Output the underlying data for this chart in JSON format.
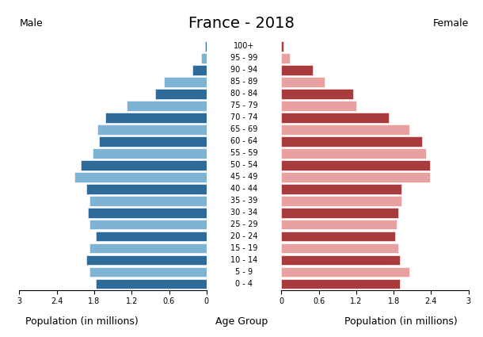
{
  "title": "France - 2018",
  "male_label": "Male",
  "female_label": "Female",
  "xlabel": "Population (in millions)",
  "center_label": "Age Group",
  "age_groups": [
    "0 - 4",
    "5 - 9",
    "10 - 14",
    "15 - 19",
    "20 - 24",
    "25 - 29",
    "30 - 34",
    "35 - 39",
    "40 - 44",
    "45 - 49",
    "50 - 54",
    "55 - 59",
    "60 - 64",
    "65 - 69",
    "70 - 74",
    "75 - 79",
    "80 - 84",
    "85 - 89",
    "90 - 94",
    "95 - 99",
    "100+"
  ],
  "male_values": [
    1.78,
    1.88,
    1.92,
    1.88,
    1.78,
    1.88,
    1.9,
    1.88,
    1.92,
    2.12,
    2.02,
    1.82,
    1.72,
    1.75,
    1.62,
    1.28,
    0.82,
    0.68,
    0.22,
    0.08,
    0.02
  ],
  "female_values": [
    1.9,
    2.05,
    1.9,
    1.88,
    1.82,
    1.85,
    1.88,
    1.92,
    1.92,
    2.38,
    2.38,
    2.32,
    2.25,
    2.05,
    1.72,
    1.2,
    1.15,
    0.7,
    0.5,
    0.14,
    0.03
  ],
  "male_colors": [
    "#2e6b99",
    "#7fb3d3",
    "#2e6b99",
    "#7fb3d3",
    "#2e6b99",
    "#7fb3d3",
    "#2e6b99",
    "#7fb3d3",
    "#2e6b99",
    "#7fb3d3",
    "#2e6b99",
    "#7fb3d3",
    "#2e6b99",
    "#7fb3d3",
    "#2e6b99",
    "#7fb3d3",
    "#2e6b99",
    "#7fb3d3",
    "#2e6b99",
    "#7fb3d3",
    "#2e6b99"
  ],
  "female_colors": [
    "#a83c3c",
    "#e8a0a0",
    "#a83c3c",
    "#e8a0a0",
    "#a83c3c",
    "#e8a0a0",
    "#a83c3c",
    "#e8a0a0",
    "#a83c3c",
    "#e8a0a0",
    "#a83c3c",
    "#e8a0a0",
    "#a83c3c",
    "#e8a0a0",
    "#a83c3c",
    "#e8a0a0",
    "#a83c3c",
    "#e8a0a0",
    "#a83c3c",
    "#e8a0a0",
    "#a83c3c"
  ],
  "xlim": 3.0,
  "xticks": [
    0,
    0.6,
    1.2,
    1.8,
    2.4,
    3.0
  ],
  "xticklabels": [
    "0",
    "0.6",
    "1.2",
    "1.8",
    "2.4",
    "3"
  ],
  "background_color": "#ffffff",
  "title_fontsize": 14,
  "tick_fontsize": 7,
  "label_fontsize": 9,
  "bar_height": 0.85
}
